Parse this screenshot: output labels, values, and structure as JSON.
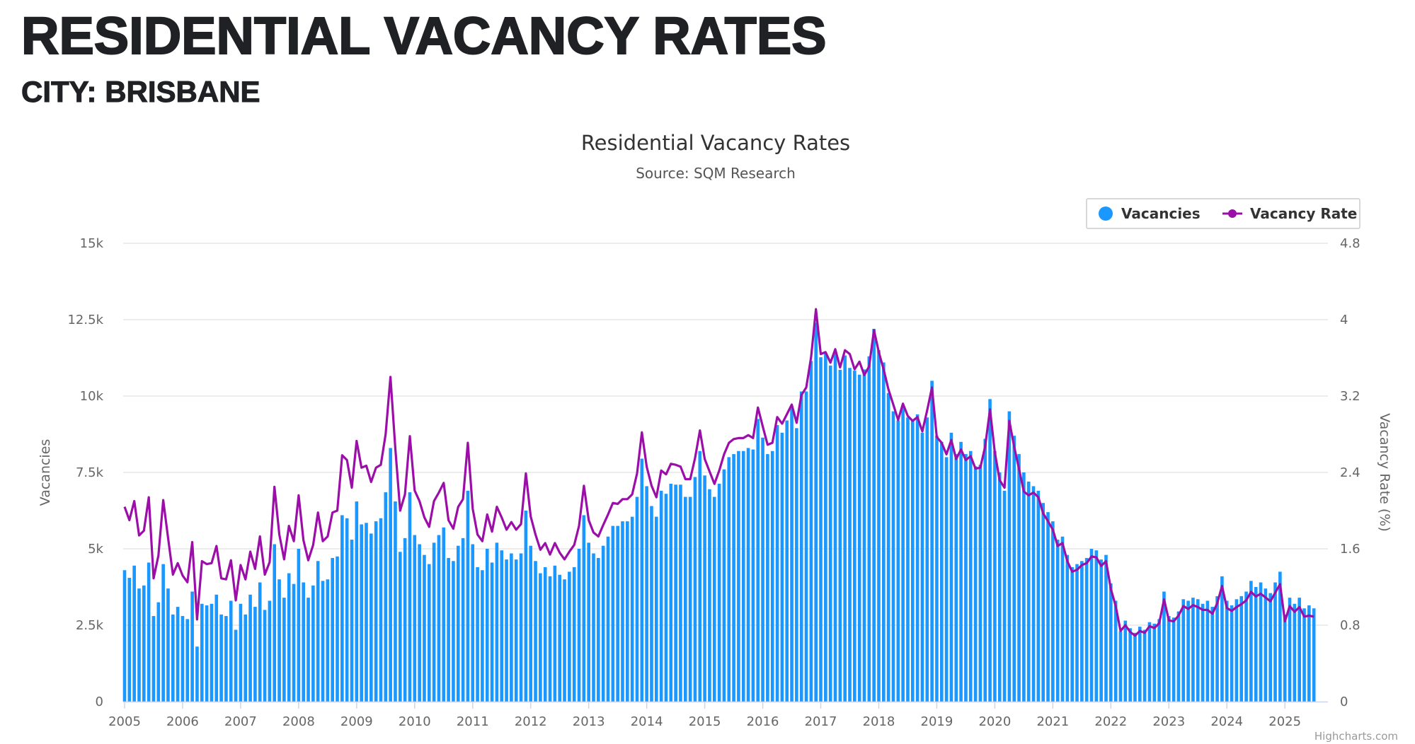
{
  "header": {
    "title": "RESIDENTIAL VACANCY RATES",
    "subtitle": "CITY: BRISBANE"
  },
  "colors": {
    "bars": "#1a98ff",
    "line": "#9c0ea8",
    "grid": "#e6e6e6",
    "text": "#1f2124"
  },
  "chart_data": {
    "type": "bar+line",
    "title": "Residential Vacancy Rates",
    "subtitle": "Source: SQM Research",
    "credit": "Highcharts.com",
    "legend": {
      "placement": "top-right",
      "items": [
        "Vacancies",
        "Vacancy Rate"
      ]
    },
    "x": {
      "start": "2005-01",
      "interval": "month",
      "tick_labels": [
        "2005",
        "2006",
        "2007",
        "2008",
        "2009",
        "2010",
        "2011",
        "2012",
        "2013",
        "2014",
        "2015",
        "2016",
        "2017",
        "2018",
        "2019",
        "2020",
        "2021",
        "2022",
        "2023",
        "2024",
        "2025"
      ]
    },
    "y_left": {
      "title": "Vacancies",
      "range": [
        0,
        15000
      ],
      "tick_labels": [
        "0",
        "2.5k",
        "5k",
        "7.5k",
        "10k",
        "12.5k",
        "15k"
      ],
      "grid": true
    },
    "y_right": {
      "title": "Vacancy Rate (%)",
      "range": [
        0,
        4.8
      ],
      "tick_labels": [
        "0",
        "0.8",
        "1.6",
        "2.4",
        "3.2",
        "4",
        "4.8"
      ]
    },
    "series": [
      {
        "name": "Vacancies",
        "type": "column",
        "unit": "thousands",
        "values": [
          4.3,
          4.05,
          4.45,
          3.7,
          3.8,
          4.55,
          2.8,
          3.25,
          4.5,
          3.7,
          2.85,
          3.1,
          2.8,
          2.7,
          3.6,
          1.8,
          3.2,
          3.15,
          3.2,
          3.5,
          2.85,
          2.8,
          3.3,
          2.35,
          3.2,
          2.85,
          3.5,
          3.1,
          3.9,
          3.0,
          3.3,
          5.15,
          4.0,
          3.4,
          4.2,
          3.85,
          5.0,
          3.9,
          3.4,
          3.8,
          4.6,
          3.95,
          4.0,
          4.7,
          4.75,
          6.1,
          6.0,
          5.3,
          6.55,
          5.8,
          5.85,
          5.5,
          5.9,
          6.0,
          6.85,
          8.3,
          6.55,
          4.9,
          5.35,
          6.85,
          5.45,
          5.15,
          4.8,
          4.5,
          5.2,
          5.45,
          5.7,
          4.7,
          4.6,
          5.1,
          5.35,
          6.9,
          5.15,
          4.4,
          4.3,
          5.0,
          4.55,
          5.2,
          4.95,
          4.65,
          4.85,
          4.65,
          4.85,
          6.25,
          5.1,
          4.6,
          4.2,
          4.4,
          4.1,
          4.45,
          4.15,
          4.0,
          4.25,
          4.4,
          5.0,
          6.1,
          5.2,
          4.85,
          4.7,
          5.1,
          5.4,
          5.75,
          5.75,
          5.9,
          5.9,
          6.05,
          6.7,
          7.95,
          7.05,
          6.4,
          6.05,
          6.9,
          6.8,
          7.13,
          7.1,
          7.1,
          6.7,
          6.7,
          7.35,
          8.2,
          7.4,
          6.95,
          6.7,
          7.13,
          7.6,
          8.0,
          8.1,
          8.2,
          8.2,
          8.3,
          8.25,
          9.25,
          8.64,
          8.1,
          8.2,
          9.05,
          8.8,
          9.2,
          9.6,
          8.95,
          10.15,
          10.15,
          11.15,
          12.4,
          11.27,
          11.4,
          11.0,
          11.4,
          10.86,
          11.33,
          10.92,
          10.83,
          10.7,
          10.87,
          11.3,
          12.2,
          11.5,
          11.1,
          10.1,
          9.5,
          9.2,
          9.7,
          9.3,
          9.2,
          9.4,
          8.8,
          9.3,
          10.5,
          8.7,
          8.5,
          8.0,
          8.8,
          8.1,
          8.5,
          8.1,
          8.2,
          7.7,
          7.75,
          8.6,
          9.9,
          8.2,
          7.5,
          6.9,
          9.5,
          8.7,
          8.1,
          7.5,
          7.2,
          7.05,
          6.9,
          6.5,
          6.2,
          5.9,
          5.3,
          5.4,
          4.8,
          4.4,
          4.5,
          4.6,
          4.7,
          5.0,
          4.95,
          4.65,
          4.8,
          3.87,
          3.3,
          2.3,
          2.65,
          2.4,
          2.25,
          2.45,
          2.35,
          2.6,
          2.55,
          2.7,
          3.6,
          2.8,
          2.75,
          2.95,
          3.35,
          3.3,
          3.4,
          3.35,
          3.2,
          3.3,
          3.1,
          3.45,
          4.1,
          3.3,
          3.15,
          3.35,
          3.45,
          3.6,
          3.95,
          3.75,
          3.9,
          3.7,
          3.55,
          3.9,
          4.25,
          2.85,
          3.4,
          3.2,
          3.4,
          3.05,
          3.15,
          3.05
        ]
      },
      {
        "name": "Vacancy Rate",
        "type": "line",
        "unit": "%",
        "values": [
          2.04,
          1.9,
          2.1,
          1.74,
          1.79,
          2.14,
          1.29,
          1.53,
          2.11,
          1.71,
          1.33,
          1.45,
          1.32,
          1.25,
          1.67,
          0.86,
          1.47,
          1.44,
          1.45,
          1.63,
          1.29,
          1.28,
          1.48,
          1.06,
          1.43,
          1.28,
          1.57,
          1.39,
          1.73,
          1.33,
          1.46,
          2.25,
          1.75,
          1.49,
          1.84,
          1.68,
          2.16,
          1.69,
          1.48,
          1.64,
          1.98,
          1.68,
          1.73,
          1.98,
          2.0,
          2.58,
          2.53,
          2.24,
          2.73,
          2.45,
          2.47,
          2.3,
          2.45,
          2.48,
          2.8,
          3.4,
          2.65,
          2.0,
          2.17,
          2.78,
          2.21,
          2.1,
          1.93,
          1.83,
          2.1,
          2.19,
          2.29,
          1.9,
          1.81,
          2.04,
          2.12,
          2.71,
          2.02,
          1.75,
          1.68,
          1.96,
          1.78,
          2.04,
          1.93,
          1.8,
          1.88,
          1.8,
          1.86,
          2.39,
          1.94,
          1.75,
          1.59,
          1.66,
          1.54,
          1.66,
          1.56,
          1.49,
          1.57,
          1.64,
          1.84,
          2.26,
          1.9,
          1.77,
          1.73,
          1.85,
          1.96,
          2.08,
          2.07,
          2.12,
          2.12,
          2.17,
          2.39,
          2.82,
          2.46,
          2.26,
          2.14,
          2.42,
          2.38,
          2.49,
          2.48,
          2.46,
          2.33,
          2.33,
          2.55,
          2.84,
          2.54,
          2.41,
          2.28,
          2.42,
          2.59,
          2.71,
          2.75,
          2.76,
          2.76,
          2.79,
          2.76,
          3.08,
          2.88,
          2.69,
          2.71,
          2.98,
          2.91,
          3.01,
          3.11,
          2.92,
          3.21,
          3.29,
          3.61,
          4.11,
          3.64,
          3.66,
          3.55,
          3.69,
          3.5,
          3.68,
          3.64,
          3.48,
          3.56,
          3.42,
          3.51,
          3.89,
          3.66,
          3.48,
          3.27,
          3.11,
          2.95,
          3.12,
          2.99,
          2.94,
          2.98,
          2.83,
          3.05,
          3.29,
          2.77,
          2.71,
          2.59,
          2.74,
          2.54,
          2.64,
          2.53,
          2.57,
          2.44,
          2.45,
          2.67,
          3.06,
          2.61,
          2.32,
          2.24,
          2.94,
          2.67,
          2.44,
          2.2,
          2.16,
          2.19,
          2.14,
          1.97,
          1.89,
          1.8,
          1.63,
          1.66,
          1.47,
          1.36,
          1.38,
          1.43,
          1.45,
          1.52,
          1.51,
          1.42,
          1.47,
          1.18,
          1.0,
          0.74,
          0.8,
          0.73,
          0.69,
          0.74,
          0.72,
          0.79,
          0.77,
          0.82,
          1.07,
          0.85,
          0.84,
          0.9,
          1.0,
          0.97,
          1.01,
          0.99,
          0.96,
          0.96,
          0.92,
          1.03,
          1.21,
          0.98,
          0.95,
          0.99,
          1.02,
          1.06,
          1.15,
          1.1,
          1.13,
          1.09,
          1.05,
          1.14,
          1.23,
          0.84,
          1.0,
          0.94,
          0.99,
          0.89,
          0.9,
          0.89
        ]
      }
    ]
  }
}
